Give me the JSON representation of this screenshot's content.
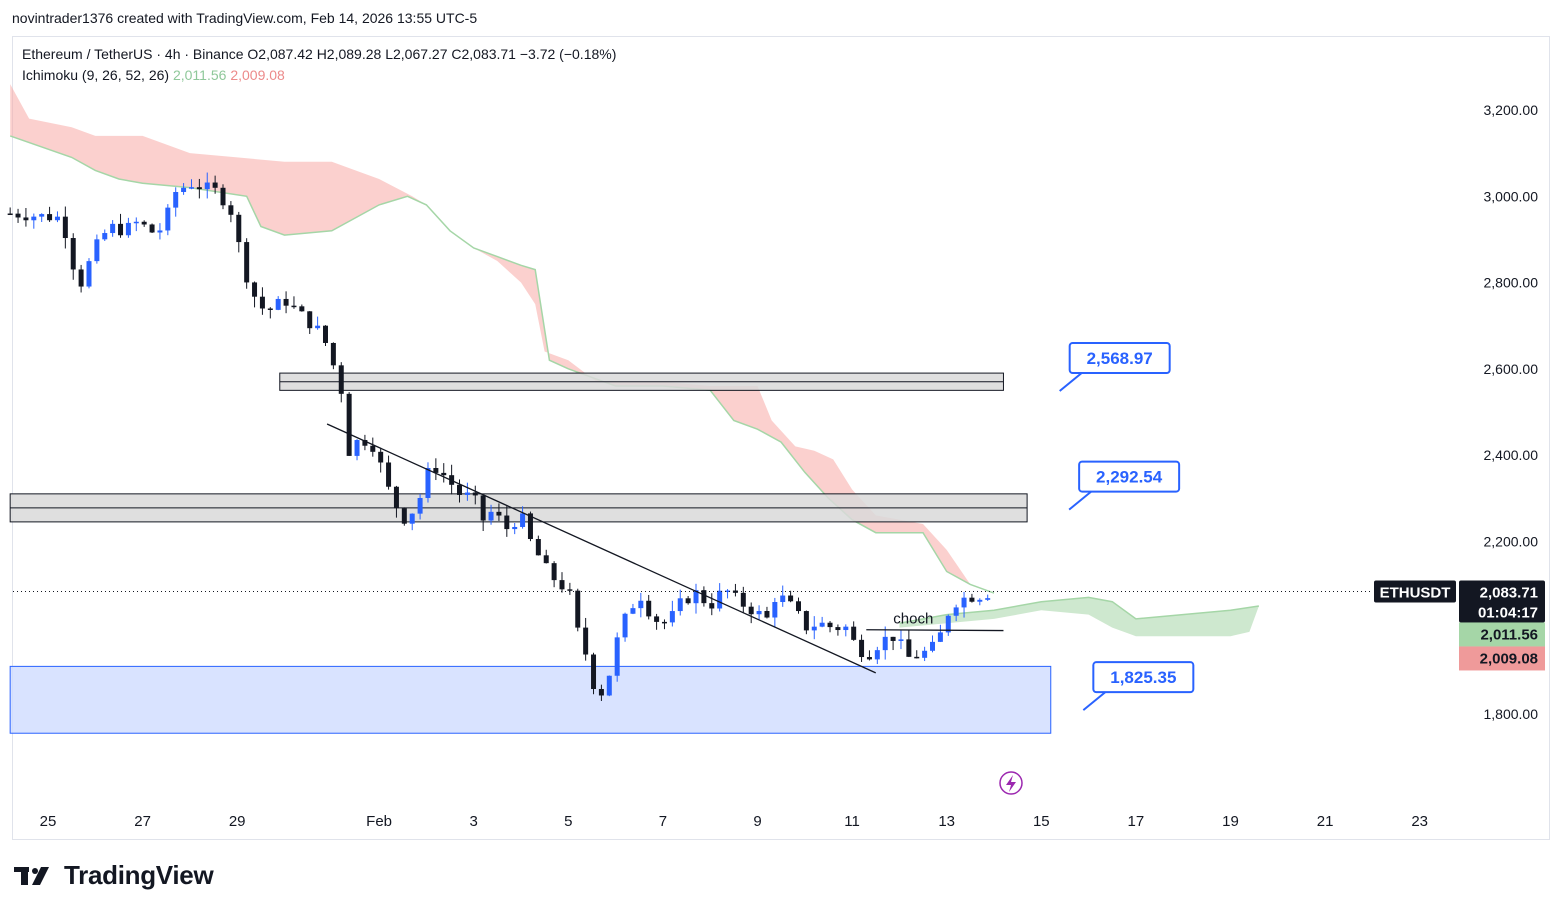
{
  "header": {
    "credit": "novintrader1376 created with TradingView.com, Feb 14, 2026 13:55 UTC-5"
  },
  "legend": {
    "title": "Ethereum / TetherUS · 4h · Binance",
    "ohlc": "O2,087.42  H2,089.28  L2,067.27  C2,083.71  −3.72 (−0.18%)",
    "indicator_name": "Ichimoku (9, 26, 52, 26)",
    "indicator_value_1": "2,011.56",
    "indicator_value_2": "2,009.08"
  },
  "colors": {
    "bull": "#2962ff",
    "bear": "#131722",
    "cloud_bear": "#f7a9a5",
    "cloud_bull": "#a5d6a7",
    "demand_zone": "#d0dcff",
    "label_border": "#2962ff"
  },
  "chart_data": {
    "type": "candlestick",
    "symbol": "ETHUSDT",
    "interval": "4h",
    "ylim": [
      1640,
      3330
    ],
    "yticks": [
      1800,
      2000,
      2200,
      2400,
      2600,
      2800,
      3000,
      3200
    ],
    "ytick_labels": [
      "1,800.00",
      "2,200.00",
      "2,400.00",
      "2,600.00",
      "2,800.00",
      "3,000.00",
      "3,200.00"
    ],
    "xlim_days": [
      -0.8,
      30.4
    ],
    "xticks": [
      {
        "day": 0,
        "label": "25"
      },
      {
        "day": 2,
        "label": "27"
      },
      {
        "day": 4,
        "label": "29"
      },
      {
        "day": 7,
        "label": "Feb"
      },
      {
        "day": 9,
        "label": "3"
      },
      {
        "day": 11,
        "label": "5"
      },
      {
        "day": 13,
        "label": "7"
      },
      {
        "day": 15,
        "label": "9"
      },
      {
        "day": 17,
        "label": "11"
      },
      {
        "day": 19,
        "label": "13"
      },
      {
        "day": 21,
        "label": "15"
      },
      {
        "day": 23,
        "label": "17"
      },
      {
        "day": 25,
        "label": "19"
      },
      {
        "day": 27,
        "label": "21"
      },
      {
        "day": 29,
        "label": "23"
      }
    ],
    "close_path": [
      [
        -0.8,
        2960
      ],
      [
        0.3,
        2950
      ],
      [
        0.5,
        2850
      ],
      [
        0.7,
        2800
      ],
      [
        1.0,
        2880
      ],
      [
        1.3,
        2930
      ],
      [
        1.6,
        2920
      ],
      [
        1.9,
        2940
      ],
      [
        2.3,
        2910
      ],
      [
        2.5,
        2950
      ],
      [
        2.7,
        3010
      ],
      [
        3.0,
        3030
      ],
      [
        3.3,
        3020
      ],
      [
        3.6,
        3010
      ],
      [
        3.9,
        2960
      ],
      [
        4.1,
        2850
      ],
      [
        4.3,
        2780
      ],
      [
        4.6,
        2730
      ],
      [
        5.0,
        2760
      ],
      [
        5.4,
        2720
      ],
      [
        5.8,
        2680
      ],
      [
        6.0,
        2620
      ],
      [
        6.2,
        2550
      ],
      [
        6.3,
        2400
      ],
      [
        6.6,
        2440
      ],
      [
        6.9,
        2420
      ],
      [
        7.2,
        2320
      ],
      [
        7.5,
        2250
      ],
      [
        7.8,
        2280
      ],
      [
        8.1,
        2380
      ],
      [
        8.4,
        2350
      ],
      [
        8.7,
        2310
      ],
      [
        9.0,
        2300
      ],
      [
        9.2,
        2250
      ],
      [
        9.4,
        2270
      ],
      [
        9.7,
        2230
      ],
      [
        10.0,
        2260
      ],
      [
        10.2,
        2200
      ],
      [
        10.5,
        2140
      ],
      [
        10.8,
        2100
      ],
      [
        11.0,
        2090
      ],
      [
        11.2,
        1990
      ],
      [
        11.4,
        1930
      ],
      [
        11.6,
        1840
      ],
      [
        11.8,
        1860
      ],
      [
        12.0,
        1960
      ],
      [
        12.2,
        2020
      ],
      [
        12.5,
        2080
      ],
      [
        12.8,
        2020
      ],
      [
        13.1,
        2010
      ],
      [
        13.4,
        2060
      ],
      [
        13.7,
        2080
      ],
      [
        14.0,
        2050
      ],
      [
        14.3,
        2090
      ],
      [
        14.6,
        2060
      ],
      [
        14.9,
        2040
      ],
      [
        15.2,
        2020
      ],
      [
        15.4,
        2080
      ],
      [
        15.6,
        2060
      ],
      [
        15.8,
        2040
      ],
      [
        16.0,
        2000
      ],
      [
        16.3,
        2010
      ],
      [
        16.6,
        2000
      ],
      [
        16.9,
        2000
      ],
      [
        17.1,
        1950
      ],
      [
        17.4,
        1940
      ],
      [
        17.6,
        1970
      ],
      [
        17.9,
        1980
      ],
      [
        18.2,
        1930
      ],
      [
        18.5,
        1940
      ],
      [
        18.8,
        1960
      ],
      [
        19.0,
        2030
      ],
      [
        19.2,
        2060
      ],
      [
        19.4,
        2070
      ],
      [
        19.7,
        2075
      ],
      [
        20.0,
        2083.71
      ]
    ],
    "cloud_bear": [
      [
        [
          -0.8,
          3140
        ],
        [
          0.5,
          3090
        ],
        [
          1.0,
          3060
        ],
        [
          1.5,
          3040
        ],
        [
          2.0,
          3030
        ],
        [
          3.0,
          3020
        ],
        [
          4.2,
          3000
        ],
        [
          4.5,
          2930
        ],
        [
          5.0,
          2910
        ],
        [
          6.0,
          2920
        ],
        [
          7.0,
          2980
        ],
        [
          7.6,
          3000
        ],
        [
          8.0,
          2980
        ],
        [
          8.5,
          2920
        ],
        [
          9.0,
          2880
        ],
        [
          9.5,
          2860
        ],
        [
          10.0,
          2840
        ],
        [
          10.3,
          2830
        ],
        [
          10.6,
          2620
        ],
        [
          11.0,
          2600
        ],
        [
          12.0,
          2560
        ],
        [
          13.0,
          2560
        ],
        [
          14.0,
          2550
        ],
        [
          14.5,
          2480
        ],
        [
          15.0,
          2460
        ],
        [
          15.5,
          2430
        ],
        [
          16.0,
          2360
        ],
        [
          16.5,
          2300
        ],
        [
          17.0,
          2250
        ],
        [
          17.5,
          2220
        ],
        [
          18.5,
          2220
        ],
        [
          19.0,
          2130
        ],
        [
          19.5,
          2100
        ],
        [
          20.0,
          2080
        ]
      ],
      [
        [
          -0.8,
          3260
        ],
        [
          -0.4,
          3180
        ],
        [
          0.5,
          3160
        ],
        [
          1.0,
          3140
        ],
        [
          2.0,
          3140
        ],
        [
          3.0,
          3100
        ],
        [
          4.0,
          3090
        ],
        [
          5.0,
          3080
        ],
        [
          6.0,
          3080
        ],
        [
          6.5,
          3060
        ],
        [
          7.0,
          3040
        ],
        [
          7.7,
          3000
        ],
        [
          8.0,
          2980
        ],
        [
          8.5,
          2920
        ],
        [
          9.0,
          2880
        ],
        [
          9.5,
          2850
        ],
        [
          10.0,
          2800
        ],
        [
          10.3,
          2750
        ],
        [
          10.5,
          2640
        ],
        [
          11.0,
          2620
        ],
        [
          11.6,
          2570
        ],
        [
          13.0,
          2570
        ],
        [
          14.0,
          2560
        ],
        [
          15.0,
          2560
        ],
        [
          15.3,
          2480
        ],
        [
          15.8,
          2420
        ],
        [
          16.2,
          2410
        ],
        [
          16.6,
          2390
        ],
        [
          17.0,
          2320
        ],
        [
          17.5,
          2260
        ],
        [
          18.5,
          2240
        ],
        [
          19.0,
          2180
        ],
        [
          19.5,
          2100
        ],
        [
          20.0,
          2080
        ]
      ]
    ],
    "cloud_bull": [
      [
        [
          18.0,
          2010
        ],
        [
          19.0,
          2030
        ],
        [
          20.0,
          2040
        ],
        [
          21.0,
          2060
        ],
        [
          22.0,
          2070
        ],
        [
          22.5,
          2060
        ],
        [
          23.0,
          2020
        ],
        [
          25.0,
          2040
        ],
        [
          25.6,
          2050
        ]
      ],
      [
        [
          18.0,
          2000
        ],
        [
          19.0,
          2010
        ],
        [
          20.0,
          2020
        ],
        [
          21.0,
          2040
        ],
        [
          22.0,
          2030
        ],
        [
          22.5,
          2000
        ],
        [
          23.0,
          1980
        ],
        [
          25.0,
          1980
        ],
        [
          25.4,
          1990
        ]
      ]
    ],
    "zones": [
      {
        "name": "supply-zone",
        "from_day": 4.9,
        "to_day": 20.2,
        "low": 2550,
        "high": 2590
      },
      {
        "name": "resistance-zone",
        "from_day": -0.8,
        "to_day": 20.7,
        "low": 2245,
        "high": 2310
      },
      {
        "name": "demand-zone",
        "from_day": -0.8,
        "to_day": 21.2,
        "low": 1755,
        "high": 1910
      }
    ],
    "price_labels": [
      {
        "text": "2,568.97",
        "day": 21.6,
        "price": 2625
      },
      {
        "text": "2,292.54",
        "day": 21.8,
        "price": 2350
      },
      {
        "text": "1,825.35",
        "day": 22.1,
        "price": 1885
      }
    ],
    "trendline": {
      "start": [
        5.9,
        2472
      ],
      "end": [
        17.5,
        1895
      ]
    },
    "choch": {
      "label": "choch",
      "start": [
        17.3,
        1995
      ],
      "end": [
        20.2,
        1993
      ]
    },
    "last_price": {
      "symbol": "ETHUSDT",
      "price": "2,083.71",
      "countdown": "01:04:17",
      "value": 2083.71
    },
    "indicator_axis_labels": [
      {
        "text": "2,011.56",
        "value": 2011.56
      },
      {
        "text": "2,009.08",
        "value": 2009.08
      }
    ]
  }
}
